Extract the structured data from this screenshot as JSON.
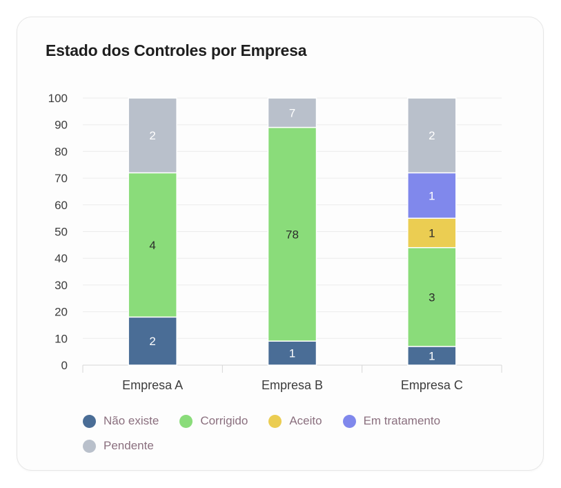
{
  "chart_data": {
    "type": "bar",
    "stacked": true,
    "title": "Estado dos Controles por Empresa",
    "categories": [
      "Empresa A",
      "Empresa B",
      "Empresa C"
    ],
    "ylim": [
      0,
      100
    ],
    "yticks": [
      0,
      10,
      20,
      30,
      40,
      50,
      60,
      70,
      80,
      90,
      100
    ],
    "grid": true,
    "legend_position": "bottom",
    "series": [
      {
        "name": "Não existe",
        "color": "#4a6d96",
        "percent": [
          18,
          9,
          7
        ],
        "labels": [
          "2",
          "1",
          "1"
        ]
      },
      {
        "name": "Corrigido",
        "color": "#8adc7a",
        "percent": [
          54,
          80,
          37
        ],
        "labels": [
          "4",
          "78",
          "3"
        ]
      },
      {
        "name": "Aceito",
        "color": "#ebcd52",
        "percent": [
          0,
          0,
          11
        ],
        "labels": [
          "",
          "",
          "1"
        ]
      },
      {
        "name": "Em tratamento",
        "color": "#8088ec",
        "percent": [
          0,
          0,
          17
        ],
        "labels": [
          "",
          "",
          "1"
        ]
      },
      {
        "name": "Pendente",
        "color": "#b9c0cb",
        "percent": [
          28,
          11,
          28
        ],
        "labels": [
          "2",
          "7",
          "2"
        ]
      }
    ]
  }
}
